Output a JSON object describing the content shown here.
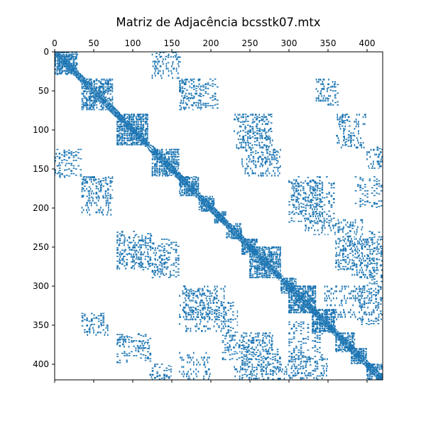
{
  "chart_data": {
    "type": "heatmap",
    "title": "Matriz de Adjacência bcsstk07.mtx",
    "matrix_size": [
      420,
      420
    ],
    "xlim": [
      0,
      420
    ],
    "ylim": [
      420,
      0
    ],
    "x_ticks": [
      0,
      50,
      100,
      150,
      200,
      250,
      300,
      350,
      400
    ],
    "y_ticks": [
      0,
      50,
      100,
      150,
      200,
      250,
      300,
      350,
      400
    ],
    "x_axis_position": "top",
    "marker_color": "#1f77b4",
    "symmetric": true,
    "diagonal_blocks": [
      [
        0,
        30
      ],
      [
        35,
        75
      ],
      [
        80,
        120
      ],
      [
        125,
        160
      ],
      [
        160,
        185
      ],
      [
        185,
        205
      ],
      [
        205,
        220
      ],
      [
        220,
        240
      ],
      [
        240,
        260
      ],
      [
        250,
        290
      ],
      [
        290,
        310
      ],
      [
        300,
        335
      ],
      [
        330,
        360
      ],
      [
        360,
        385
      ],
      [
        380,
        400
      ],
      [
        400,
        420
      ]
    ],
    "offdiagonal_blocks": [
      {
        "rows": [
          0,
          15
        ],
        "cols": [
          130,
          165
        ]
      },
      {
        "rows": [
          10,
          30
        ],
        "cols": [
          0,
          30
        ]
      },
      {
        "rows": [
          35,
          75
        ],
        "cols": [
          160,
          210
        ]
      },
      {
        "rows": [
          35,
          50
        ],
        "cols": [
          340,
          350
        ]
      },
      {
        "rows": [
          40,
          70
        ],
        "cols": [
          350,
          365
        ]
      },
      {
        "rows": [
          80,
          125
        ],
        "cols": [
          235,
          280
        ]
      },
      {
        "rows": [
          80,
          100
        ],
        "cols": [
          365,
          380
        ]
      },
      {
        "rows": [
          100,
          125
        ],
        "cols": [
          370,
          385
        ]
      },
      {
        "rows": [
          120,
          130
        ],
        "cols": [
          410,
          420
        ]
      },
      {
        "rows": [
          125,
          160
        ],
        "cols": [
          0,
          35
        ]
      },
      {
        "rows": [
          125,
          150
        ],
        "cols": [
          245,
          290
        ]
      },
      {
        "rows": [
          160,
          190
        ],
        "cols": [
          35,
          75
        ]
      },
      {
        "rows": [
          160,
          220
        ],
        "cols": [
          300,
          360
        ]
      },
      {
        "rows": [
          160,
          200
        ],
        "cols": [
          385,
          420
        ]
      },
      {
        "rows": [
          230,
          280
        ],
        "cols": [
          80,
          125
        ]
      },
      {
        "rows": [
          240,
          290
        ],
        "cols": [
          125,
          160
        ]
      },
      {
        "rows": [
          220,
          280
        ],
        "cols": [
          360,
          385
        ]
      },
      {
        "rows": [
          230,
          300
        ],
        "cols": [
          400,
          420
        ]
      },
      {
        "rows": [
          300,
          345
        ],
        "cols": [
          165,
          210
        ]
      },
      {
        "rows": [
          320,
          360
        ],
        "cols": [
          210,
          235
        ]
      },
      {
        "rows": [
          335,
          360
        ],
        "cols": [
          35,
          65
        ]
      },
      {
        "rows": [
          360,
          400
        ],
        "cols": [
          80,
          125
        ]
      },
      {
        "rows": [
          360,
          395
        ],
        "cols": [
          215,
          280
        ]
      },
      {
        "rows": [
          380,
          420
        ],
        "cols": [
          240,
          290
        ]
      },
      {
        "rows": [
          400,
          420
        ],
        "cols": [
          125,
          150
        ]
      },
      {
        "rows": [
          300,
          350
        ],
        "cols": [
          390,
          420
        ]
      },
      {
        "rows": [
          345,
          420
        ],
        "cols": [
          300,
          345
        ]
      }
    ]
  }
}
